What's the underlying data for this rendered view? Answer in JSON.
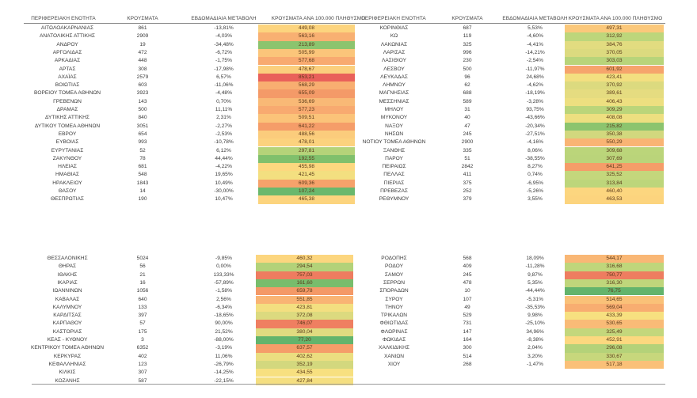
{
  "headers": {
    "region": "ΠΕΡΙΦΕΡΕΙΑΚΗ ΕΝΟΤΗΤΑ",
    "cases": "ΚΡΟΥΣΜΑΤΑ",
    "weekly_change": "ΕΒΔΟΜΑΔΙΑΙΑ ΜΕΤΑΒΟΛΗ",
    "per_100k": "ΚΡΟΥΣΜΑΤΑ ΑΝΑ 100.000 ΠΛΗΘΥΣΜΟ"
  },
  "color_scale": {
    "high": "#e8655a",
    "high_mid": "#f4a26a",
    "mid_orange": "#f9c07a",
    "mid": "#fbe082",
    "low_mid": "#c9da7e",
    "low": "#93c670",
    "lowest": "#63b46c"
  },
  "tables": [
    {
      "rows": [
        {
          "region": "ΑΙΤΩΛΟΑΚΑΡΝΑΝΙΑΣ",
          "cases": "861",
          "change": "-13,81%",
          "rate": "449,08",
          "color": "#fcd47e"
        },
        {
          "region": "ΑΝΑΤΟΛΙΚΗΣ ΑΤΤΙΚΗΣ",
          "cases": "2909",
          "change": "-4,03%",
          "rate": "563,16",
          "color": "#f8b072"
        },
        {
          "region": "ΑΝΔΡΟΥ",
          "cases": "19",
          "change": "-34,48%",
          "rate": "213,89",
          "color": "#8cc46e"
        },
        {
          "region": "ΑΡΓΟΛΙΔΑΣ",
          "cases": "472",
          "change": "-6,72%",
          "rate": "505,99",
          "color": "#fbc57a"
        },
        {
          "region": "ΑΡΚΑΔΙΑΣ",
          "cases": "448",
          "change": "-1,75%",
          "rate": "577,68",
          "color": "#f8aa70"
        },
        {
          "region": "ΑΡΤΑΣ",
          "cases": "308",
          "change": "-17,98%",
          "rate": "478,67",
          "color": "#fbcf7d"
        },
        {
          "region": "ΑΧΑΪΑΣ",
          "cases": "2579",
          "change": "6,57%",
          "rate": "853,21",
          "color": "#e9615a"
        },
        {
          "region": "ΒΟΙΩΤΙΑΣ",
          "cases": "603",
          "change": "-11,06%",
          "rate": "568,29",
          "color": "#f8ae71"
        },
        {
          "region": "ΒΟΡΕΙΟΥ ΤΟΜΕΑ ΑΘΗΝΩΝ",
          "cases": "3923",
          "change": "-4,48%",
          "rate": "655,09",
          "color": "#f49a68"
        },
        {
          "region": "ΓΡΕΒΕΝΩΝ",
          "cases": "143",
          "change": "0,70%",
          "rate": "536,69",
          "color": "#f9b976"
        },
        {
          "region": "ΔΡΑΜΑΣ",
          "cases": "500",
          "change": "11,11%",
          "rate": "577,23",
          "color": "#f8aa70"
        },
        {
          "region": "ΔΥΤΙΚΗΣ ΑΤΤΙΚΗΣ",
          "cases": "840",
          "change": "2,31%",
          "rate": "509,51",
          "color": "#fbc379"
        },
        {
          "region": "ΔΥΤΙΚΟΥ ΤΟΜΕΑ ΑΘΗΝΩΝ",
          "cases": "3051",
          "change": "-2,27%",
          "rate": "641,22",
          "color": "#f59d69"
        },
        {
          "region": "ΕΒΡΟΥ",
          "cases": "654",
          "change": "-2,53%",
          "rate": "488,56",
          "color": "#fbcc7c"
        },
        {
          "region": "ΕΥΒΟΙΑΣ",
          "cases": "993",
          "change": "-10,78%",
          "rate": "478,01",
          "color": "#fcd27e"
        },
        {
          "region": "ΕΥΡΥΤΑΝΙΑΣ",
          "cases": "52",
          "change": "6,12%",
          "rate": "297,81",
          "color": "#b5d379"
        },
        {
          "region": "ΖΑΚΥΝΘΟΥ",
          "cases": "78",
          "change": "44,44%",
          "rate": "192,55",
          "color": "#80c06c"
        },
        {
          "region": "ΗΛΕΙΑΣ",
          "cases": "681",
          "change": "-4,22%",
          "rate": "455,98",
          "color": "#fcd87f"
        },
        {
          "region": "ΗΜΑΘΙΑΣ",
          "cases": "548",
          "change": "19,65%",
          "rate": "421,45",
          "color": "#f3df80"
        },
        {
          "region": "ΗΡΑΚΛΕΙΟΥ",
          "cases": "1843",
          "change": "10,49%",
          "rate": "609,36",
          "color": "#f6a26b"
        },
        {
          "region": "ΘΑΣΟΥ",
          "cases": "14",
          "change": "-30,00%",
          "rate": "107,24",
          "color": "#6ab86d"
        },
        {
          "region": "ΘΕΣΠΡΩΤΙΑΣ",
          "cases": "190",
          "change": "10,47%",
          "rate": "465,38",
          "color": "#fcd47e"
        }
      ]
    },
    {
      "rows": [
        {
          "region": "ΚΟΡΙΝΘΙΑΣ",
          "cases": "687",
          "change": "5,53%",
          "rate": "497,31",
          "color": "#fbc87b"
        },
        {
          "region": "ΚΩ",
          "cases": "119",
          "change": "-4,60%",
          "rate": "312,92",
          "color": "#bdd67b"
        },
        {
          "region": "ΛΑΚΩΝΙΑΣ",
          "cases": "325",
          "change": "-4,41%",
          "rate": "384,76",
          "color": "#e2dc80"
        },
        {
          "region": "ΛΑΡΙΣΑΣ",
          "cases": "996",
          "change": "-14,21%",
          "rate": "370,05",
          "color": "#dcda7f"
        },
        {
          "region": "ΛΑΣΙΘΙΟΥ",
          "cases": "230",
          "change": "-2,54%",
          "rate": "303,03",
          "color": "#b8d47a"
        },
        {
          "region": "ΛΕΣΒΟΥ",
          "cases": "500",
          "change": "-11,97%",
          "rate": "601,92",
          "color": "#f6a46c"
        },
        {
          "region": "ΛΕΥΚΑΔΑΣ",
          "cases": "96",
          "change": "24,68%",
          "rate": "423,41",
          "color": "#f3df80"
        },
        {
          "region": "ΛΗΜΝΟΥ",
          "cases": "62",
          "change": "-4,62%",
          "rate": "370,92",
          "color": "#dcda7f"
        },
        {
          "region": "ΜΑΓΝΗΣΙΑΣ",
          "cases": "688",
          "change": "-18,19%",
          "rate": "389,61",
          "color": "#e5dc80"
        },
        {
          "region": "ΜΕΣΣΗΝΙΑΣ",
          "cases": "589",
          "change": "-3,28%",
          "rate": "406,43",
          "color": "#eddf80"
        },
        {
          "region": "ΜΗΛΟΥ",
          "cases": "31",
          "change": "93,75%",
          "rate": "309,29",
          "color": "#bbd57a"
        },
        {
          "region": "ΜΥΚΟΝΟΥ",
          "cases": "40",
          "change": "-43,66%",
          "rate": "408,08",
          "color": "#eddf80"
        },
        {
          "region": "ΝΑΞΟΥ",
          "cases": "47",
          "change": "-20,34%",
          "rate": "215,82",
          "color": "#8cc46e"
        },
        {
          "region": "ΝΗΣΩΝ",
          "cases": "245",
          "change": "-27,51%",
          "rate": "350,38",
          "color": "#d2d87e"
        },
        {
          "region": "ΝΟΤΙΟΥ ΤΟΜΕΑ ΑΘΗΝΩΝ",
          "cases": "2900",
          "change": "-4,16%",
          "rate": "550,29",
          "color": "#f9b474"
        },
        {
          "region": "ΞΑΝΘΗΣ",
          "cases": "335",
          "change": "8,06%",
          "rate": "309,68",
          "color": "#bbd57a"
        },
        {
          "region": "ΠΑΡΟΥ",
          "cases": "51",
          "change": "-38,55%",
          "rate": "307,69",
          "color": "#bad47a"
        },
        {
          "region": "ΠΕΙΡΑΙΩΣ",
          "cases": "2842",
          "change": "8,27%",
          "rate": "641,25",
          "color": "#f59d69"
        },
        {
          "region": "ΠΕΛΛΑΣ",
          "cases": "411",
          "change": "0,74%",
          "rate": "325,52",
          "color": "#c4d77c"
        },
        {
          "region": "ΠΙΕΡΙΑΣ",
          "cases": "375",
          "change": "-6,95%",
          "rate": "313,84",
          "color": "#bdd67b"
        },
        {
          "region": "ΠΡΕΒΕΖΑΣ",
          "cases": "252",
          "change": "-5,26%",
          "rate": "460,40",
          "color": "#fcd67f"
        },
        {
          "region": "ΡΕΘΥΜΝΟΥ",
          "cases": "379",
          "change": "3,55%",
          "rate": "463,53",
          "color": "#fcd47e"
        }
      ]
    },
    {
      "rows": [
        {
          "region": "ΘΕΣΣΑΛΟΝΙΚΗΣ",
          "cases": "5024",
          "change": "-9,85%",
          "rate": "460,32",
          "color": "#fcd67f"
        },
        {
          "region": "ΘΗΡΑΣ",
          "cases": "56",
          "change": "0,00%",
          "rate": "294,54",
          "color": "#b3d279"
        },
        {
          "region": "ΙΘΑΚΗΣ",
          "cases": "21",
          "change": "133,33%",
          "rate": "757,03",
          "color": "#ee7c60"
        },
        {
          "region": "ΙΚΑΡΙΑΣ",
          "cases": "16",
          "change": "-57,89%",
          "rate": "161,60",
          "color": "#78bd6c"
        },
        {
          "region": "ΙΩΑΝΝΙΝΩΝ",
          "cases": "1056",
          "change": "-1,58%",
          "rate": "659,78",
          "color": "#f49967"
        },
        {
          "region": "ΚΑΒΑΛΑΣ",
          "cases": "640",
          "change": "2,56%",
          "rate": "551,85",
          "color": "#f9b474"
        },
        {
          "region": "ΚΑΛΥΜΝΟΥ",
          "cases": "133",
          "change": "-6,34%",
          "rate": "423,81",
          "color": "#f3df80"
        },
        {
          "region": "ΚΑΡΔΙΤΣΑΣ",
          "cases": "397",
          "change": "-18,65%",
          "rate": "372,08",
          "color": "#dcda7f"
        },
        {
          "region": "ΚΑΡΠΑΘΟΥ",
          "cases": "57",
          "change": "90,00%",
          "rate": "746,07",
          "color": "#ef7f61"
        },
        {
          "region": "ΚΑΣΤΟΡΙΑΣ",
          "cases": "175",
          "change": "21,52%",
          "rate": "380,04",
          "color": "#e0db80"
        },
        {
          "region": "ΚΕΑΣ - ΚΥΘΝΟΥ",
          "cases": "3",
          "change": "-88,00%",
          "rate": "77,20",
          "color": "#63b46c"
        },
        {
          "region": "ΚΕΝΤΡΙΚΟΥ ΤΟΜΕΑ ΑΘΗΝΩΝ",
          "cases": "6352",
          "change": "-3,19%",
          "rate": "637,57",
          "color": "#f59d69"
        },
        {
          "region": "ΚΕΡΚΥΡΑΣ",
          "cases": "402",
          "change": "11,06%",
          "rate": "402,62",
          "color": "#ebde80"
        },
        {
          "region": "ΚΕΦΑΛΛΗΝΙΑΣ",
          "cases": "123",
          "change": "-26,79%",
          "rate": "352,19",
          "color": "#d3d87e"
        },
        {
          "region": "ΚΙΛΚΙΣ",
          "cases": "307",
          "change": "-14,25%",
          "rate": "434,55",
          "color": "#f7e080"
        },
        {
          "region": "ΚΟΖΑΝΗΣ",
          "cases": "587",
          "change": "-22,15%",
          "rate": "427,84",
          "color": "#f5df80"
        }
      ]
    },
    {
      "rows": [
        {
          "region": "ΡΟΔΟΠΗΣ",
          "cases": "568",
          "change": "18,09%",
          "rate": "544,17",
          "color": "#f9b775"
        },
        {
          "region": "ΡΟΔΟΥ",
          "cases": "409",
          "change": "-11,28%",
          "rate": "316,68",
          "color": "#bfd67b"
        },
        {
          "region": "ΣΑΜΟΥ",
          "cases": "245",
          "change": "9,87%",
          "rate": "750,77",
          "color": "#ee7d60"
        },
        {
          "region": "ΣΕΡΡΩΝ",
          "cases": "478",
          "change": "5,35%",
          "rate": "316,30",
          "color": "#bfd67b"
        },
        {
          "region": "ΣΠΟΡΑΔΩΝ",
          "cases": "10",
          "change": "-44,44%",
          "rate": "76,75",
          "color": "#63b46c"
        },
        {
          "region": "ΣΥΡΟΥ",
          "cases": "107",
          "change": "-5,31%",
          "rate": "514,65",
          "color": "#fac178"
        },
        {
          "region": "ΤΗΝΟΥ",
          "cases": "49",
          "change": "-35,53%",
          "rate": "569,04",
          "color": "#f8ad71"
        },
        {
          "region": "ΤΡΙΚΑΛΩΝ",
          "cases": "529",
          "change": "9,98%",
          "rate": "433,39",
          "color": "#f7e080"
        },
        {
          "region": "ΦΘΙΩΤΙΔΑΣ",
          "cases": "731",
          "change": "-25,10%",
          "rate": "530,65",
          "color": "#f9bb77"
        },
        {
          "region": "ΦΛΩΡΙΝΑΣ",
          "cases": "147",
          "change": "34,96%",
          "rate": "325,49",
          "color": "#c4d77c"
        },
        {
          "region": "ΦΩΚΙΔΑΣ",
          "cases": "164",
          "change": "-8,38%",
          "rate": "452,91",
          "color": "#fcd87f"
        },
        {
          "region": "ΧΑΛΚΙΔΙΚΗΣ",
          "cases": "300",
          "change": "2,04%",
          "rate": "296,08",
          "color": "#b4d279"
        },
        {
          "region": "ΧΑΝΙΩΝ",
          "cases": "514",
          "change": "3,20%",
          "rate": "330,67",
          "color": "#c7d77c"
        },
        {
          "region": "ΧΙΟΥ",
          "cases": "268",
          "change": "-1,47%",
          "rate": "517,18",
          "color": "#fac078"
        }
      ]
    }
  ]
}
